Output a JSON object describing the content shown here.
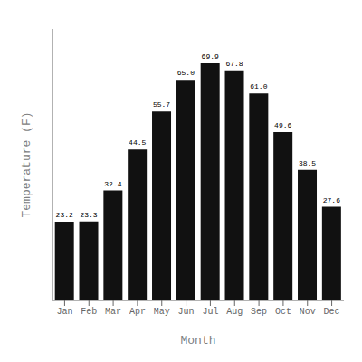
{
  "chart_data": {
    "type": "bar",
    "categories": [
      "Jan",
      "Feb",
      "Mar",
      "Apr",
      "May",
      "Jun",
      "Jul",
      "Aug",
      "Sep",
      "Oct",
      "Nov",
      "Dec"
    ],
    "values": [
      23.2,
      23.3,
      32.4,
      44.5,
      55.7,
      65.0,
      69.9,
      67.8,
      61.0,
      49.6,
      38.5,
      27.6
    ],
    "value_labels": [
      "23.2",
      "23.3",
      "32.4",
      "44.5",
      "55.7",
      "65.0",
      "69.9",
      "67.8",
      "61.0",
      "49.6",
      "38.5",
      "27.6"
    ],
    "data_labels": true,
    "color": "#111111",
    "xlabel": "Month",
    "ylabel": "Temperature (F)",
    "ylim": [
      0,
      80
    ],
    "grid": false,
    "tick_labels": "x"
  }
}
